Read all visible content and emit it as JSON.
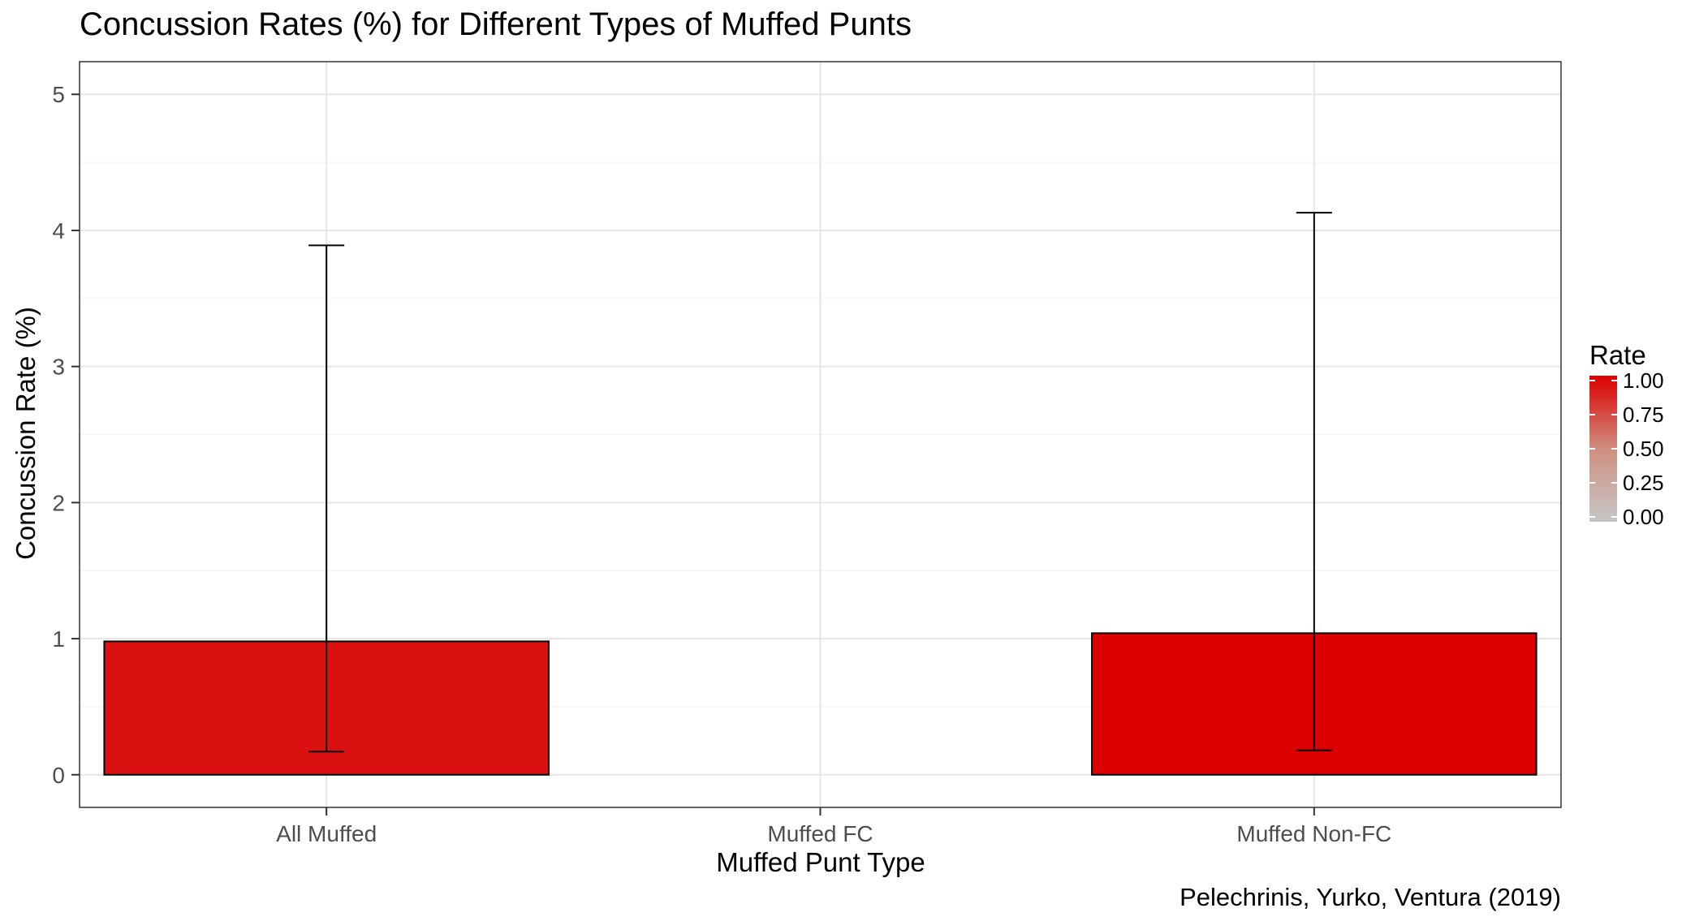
{
  "chart_data": {
    "type": "bar",
    "title": "Concussion Rates (%) for Different Types of Muffed Punts",
    "xlabel": "Muffed Punt Type",
    "ylabel": "Concussion Rate (%)",
    "caption": "Pelechrinis, Yurko, Ventura (2019)",
    "categories": [
      "All Muffed",
      "Muffed FC",
      "Muffed Non-FC"
    ],
    "values": [
      0.98,
      0.0,
      1.04
    ],
    "error_low": [
      0.17,
      null,
      0.18
    ],
    "error_high": [
      3.89,
      null,
      4.13
    ],
    "fill_rate": [
      0.92,
      0.0,
      1.0
    ],
    "ylim": [
      -0.24,
      5.24
    ],
    "yticks": [
      0,
      1,
      2,
      3,
      4,
      5
    ],
    "ytick_labels": [
      "0",
      "1",
      "2",
      "3",
      "4",
      "5"
    ],
    "grid": true,
    "legend": {
      "title": "Rate",
      "position": "right",
      "ticks": [
        "1.00",
        "0.75",
        "0.50",
        "0.25",
        "0.00"
      ],
      "colors": {
        "low": "#c6c6c6",
        "high": "#dd0000"
      }
    }
  }
}
